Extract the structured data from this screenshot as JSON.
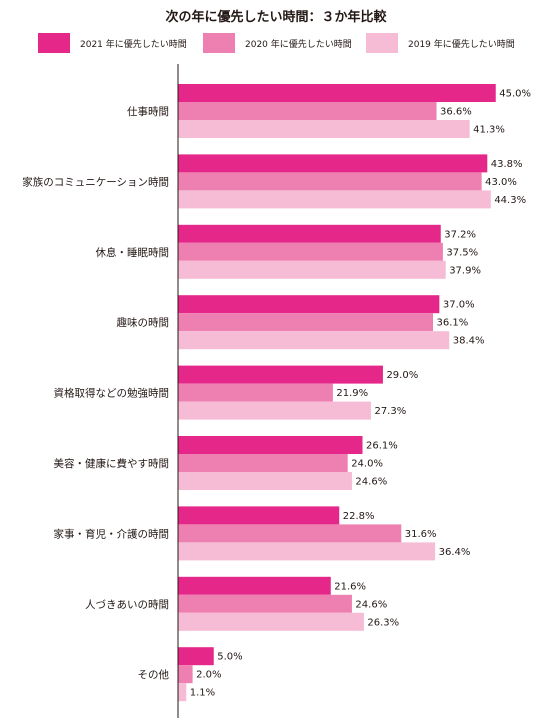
{
  "chart_data": {
    "type": "bar",
    "orientation": "horizontal",
    "title": "次の年に優先したい時間：３か年比較",
    "categories": [
      "仕事時間",
      "家族のコミュニケーション時間",
      "休息・睡眠時間",
      "趣味の時間",
      "資格取得などの勉強時間",
      "美容・健康に費やす時間",
      "家事・育児・介護の時間",
      "人づきあいの時間",
      "その他"
    ],
    "series": [
      {
        "name": "2021 年に優先したい時間",
        "color": "#e6278a",
        "values": [
          45.0,
          43.8,
          37.2,
          37.0,
          29.0,
          26.1,
          22.8,
          21.6,
          5.0
        ],
        "labels": [
          "45.0%",
          "43.8%",
          "37.2%",
          "37.0%",
          "29.0%",
          "26.1%",
          "22.8%",
          "21.6%",
          "5.0%"
        ]
      },
      {
        "name": "2020 年に優先したい時間",
        "color": "#ee7fb1",
        "values": [
          36.6,
          43.0,
          37.5,
          36.1,
          21.9,
          24.0,
          31.6,
          24.6,
          2.0
        ],
        "labels": [
          "36.6%",
          "43.0%",
          "37.5%",
          "36.1%",
          "21.9%",
          "24.0%",
          "31.6%",
          "24.6%",
          "2.0%"
        ]
      },
      {
        "name": "2019 年に優先したい時間",
        "color": "#f6bcd6",
        "values": [
          41.3,
          44.3,
          37.9,
          38.4,
          27.3,
          24.6,
          36.4,
          26.3,
          1.1
        ],
        "labels": [
          "41.3%",
          "44.3%",
          "37.9%",
          "38.4%",
          "27.3%",
          "24.6%",
          "36.4%",
          "26.3%",
          "1.1%"
        ]
      }
    ],
    "xlim": [
      0,
      50
    ],
    "legend_position": "top",
    "grid": false
  }
}
